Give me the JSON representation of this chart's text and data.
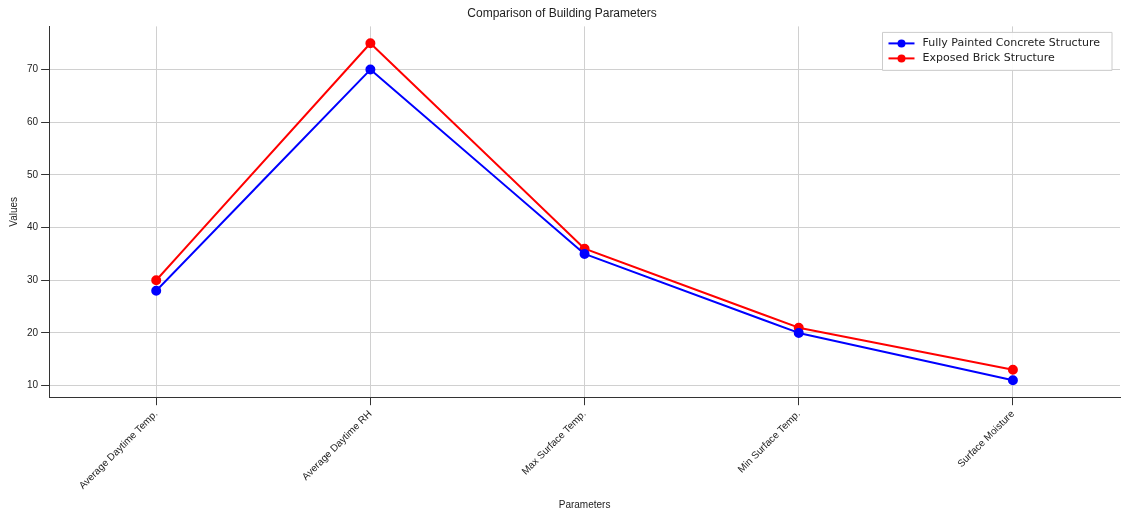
{
  "chart_data": {
    "type": "line",
    "title": "Comparison of Building Parameters",
    "xlabel": "Parameters",
    "ylabel": "Values",
    "categories": [
      "Average Daytime Temp.",
      "Average Daytime RH",
      "Max Surface Temp.",
      "Min Surface Temp.",
      "Surface Moisture"
    ],
    "series": [
      {
        "name": "Fully Painted Concrete Structure",
        "color": "#0000ff",
        "values": [
          28,
          70,
          35,
          20,
          11
        ]
      },
      {
        "name": "Exposed Brick Structure",
        "color": "#ff0000",
        "values": [
          30,
          75,
          36,
          21,
          13
        ]
      }
    ],
    "ylim": [
      7.8,
      78.2
    ],
    "yticks": [
      10,
      20,
      30,
      40,
      50,
      60,
      70
    ],
    "grid": true,
    "legend": "top right",
    "marker": "circle",
    "line_style": "solid"
  }
}
